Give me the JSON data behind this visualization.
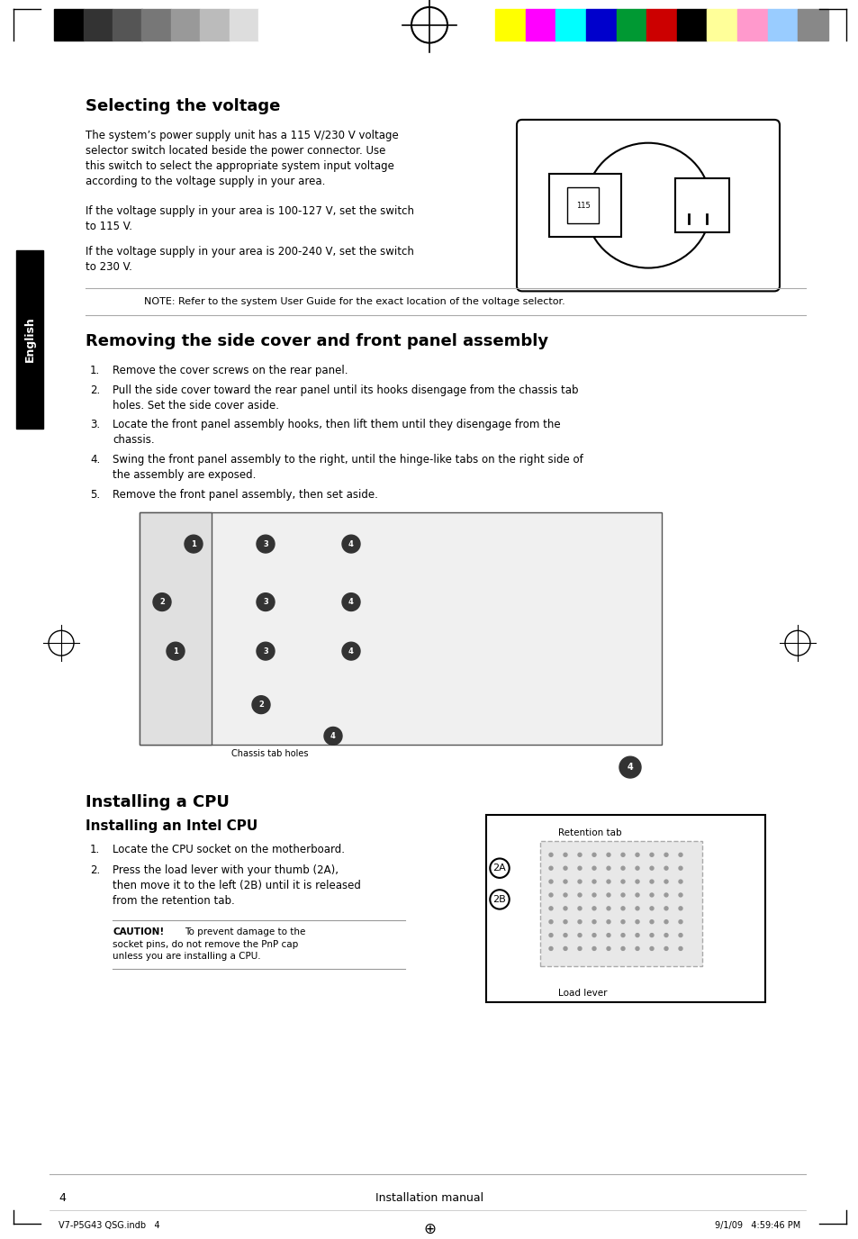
{
  "bg_color": "#ffffff",
  "page_width": 9.54,
  "page_height": 13.76,
  "color_bar_left": [
    "#000000",
    "#333333",
    "#555555",
    "#777777",
    "#999999",
    "#bbbbbb",
    "#dddddd",
    "#ffffff"
  ],
  "color_bar_right": [
    "#ffff00",
    "#ff00ff",
    "#00ffff",
    "#0000cc",
    "#009933",
    "#cc0000",
    "#000000",
    "#ffff99",
    "#ff99cc",
    "#99ccff",
    "#888888"
  ],
  "section1_title": "Selecting the voltage",
  "section1_body1": "The system’s power supply unit has a 115 V/230 V voltage\nselector switch located beside the power connector. Use\nthis switch to select the appropriate system input voltage\naccording to the voltage supply in your area.",
  "section1_body2": "If the voltage supply in your area is 100-127 V, set the switch\nto 115 V.",
  "section1_body3": "If the voltage supply in your area is 200-240 V, set the switch\nto 230 V.",
  "section1_note": "NOTE: Refer to the system User Guide for the exact location of the voltage selector.",
  "section2_title": "Removing the side cover and front panel assembly",
  "section2_items": [
    "Remove the cover screws on the rear panel.",
    "Pull the side cover toward the rear panel until its hooks disengage from the chassis tab\nholes. Set the side cover aside.",
    "Locate the front panel assembly hooks, then lift them until they disengage from the\nchassis.",
    "Swing the front panel assembly to the right, until the hinge-like tabs on the right side of\nthe assembly are exposed.",
    "Remove the front panel assembly, then set aside."
  ],
  "chassis_label": "Chassis tab holes",
  "section3_title": "Installing a CPU",
  "section3_subtitle": "Installing an Intel CPU",
  "section3_items": [
    "Locate the CPU socket on the motherboard.",
    "Press the load lever with your thumb (2A),\nthen move it to the left (2B) until it is released\nfrom the retention tab."
  ],
  "section3_caution": "CAUTION! To prevent damage to the\nsocket pins, do not remove the PnP cap\nunless you are installing a CPU.",
  "retention_label": "Retention tab",
  "load_lever_label": "Load lever",
  "footer_page": "4",
  "footer_center": "Installation manual",
  "footer_left": "V7-P5G43 QSG.indb   4",
  "footer_right": "9/1/09   4:59:46 PM"
}
